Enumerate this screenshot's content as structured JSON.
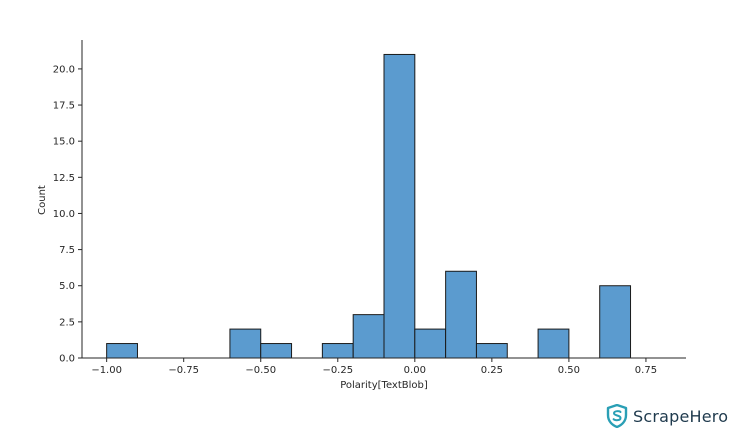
{
  "chart_data": {
    "type": "bar",
    "xlabel": "Polarity[TextBlob]",
    "ylabel": "Count",
    "xlim": [
      -1.08,
      0.88
    ],
    "ylim": [
      0,
      22
    ],
    "grid": false,
    "bar_color": "#5b9bcf",
    "edge_color": "#1a1a1a",
    "bins": [
      {
        "x0": -1.0,
        "x1": -0.9,
        "count": 1
      },
      {
        "x0": -0.6,
        "x1": -0.5,
        "count": 2
      },
      {
        "x0": -0.5,
        "x1": -0.4,
        "count": 1
      },
      {
        "x0": -0.3,
        "x1": -0.2,
        "count": 1
      },
      {
        "x0": -0.2,
        "x1": -0.1,
        "count": 3
      },
      {
        "x0": -0.1,
        "x1": 0.0,
        "count": 21
      },
      {
        "x0": 0.0,
        "x1": 0.1,
        "count": 2
      },
      {
        "x0": 0.1,
        "x1": 0.2,
        "count": 6
      },
      {
        "x0": 0.2,
        "x1": 0.3,
        "count": 1
      },
      {
        "x0": 0.4,
        "x1": 0.5,
        "count": 2
      },
      {
        "x0": 0.6,
        "x1": 0.7,
        "count": 5
      }
    ],
    "x_ticks": [
      -1.0,
      -0.75,
      -0.5,
      -0.25,
      0.0,
      0.25,
      0.5,
      0.75
    ],
    "x_tick_labels": [
      "−1.00",
      "−0.75",
      "−0.50",
      "−0.25",
      "0.00",
      "0.25",
      "0.50",
      "0.75"
    ],
    "y_ticks": [
      0,
      2.5,
      5,
      7.5,
      10,
      12.5,
      15,
      17.5,
      20
    ],
    "y_tick_labels": [
      "0.0",
      "2.5",
      "5.0",
      "7.5",
      "10.0",
      "12.5",
      "15.0",
      "17.5",
      "20.0"
    ]
  },
  "branding": {
    "name": "ScrapeHero",
    "logo_icon": "shield-s-icon",
    "color": "#2a9fb5"
  }
}
